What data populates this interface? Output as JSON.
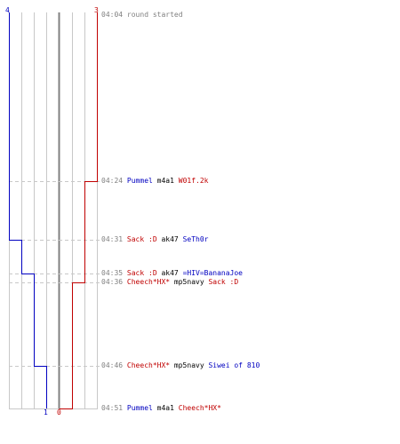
{
  "colors": {
    "blue_team": "#0000c0",
    "red_team": "#c00000",
    "timestamp": "#808080",
    "weapon": "#000000",
    "gridline": "#c8c8c8",
    "center_line": "#808080"
  },
  "score": {
    "blue_start": "4",
    "red_start": "3",
    "blue_end": "1",
    "red_end": "0"
  },
  "events": [
    {
      "time": "04:04",
      "text": "round started"
    },
    {
      "time": "04:24",
      "killer": "Pummel",
      "killer_team": "blue",
      "weapon": "m4a1",
      "victim": "W01f.2k",
      "victim_team": "red"
    },
    {
      "time": "04:31",
      "killer": "Sack :D",
      "killer_team": "red",
      "weapon": "ak47",
      "victim": "SeTh0r",
      "victim_team": "blue"
    },
    {
      "time": "04:35",
      "killer": "Sack :D",
      "killer_team": "red",
      "weapon": "ak47",
      "victim": "=HIV=BananaJoe",
      "victim_team": "blue"
    },
    {
      "time": "04:36",
      "killer": "Cheech*HX*",
      "killer_team": "red",
      "weapon": "mp5navy",
      "victim": "Sack :D",
      "victim_team": "red"
    },
    {
      "time": "04:46",
      "killer": "Cheech*HX*",
      "killer_team": "red",
      "weapon": "mp5navy",
      "victim": "Siwei of 810",
      "victim_team": "blue"
    },
    {
      "time": "04:51",
      "killer": "Pummel",
      "killer_team": "blue",
      "weapon": "m4a1",
      "victim": "Cheech*HX*",
      "victim_team": "red"
    }
  ]
}
